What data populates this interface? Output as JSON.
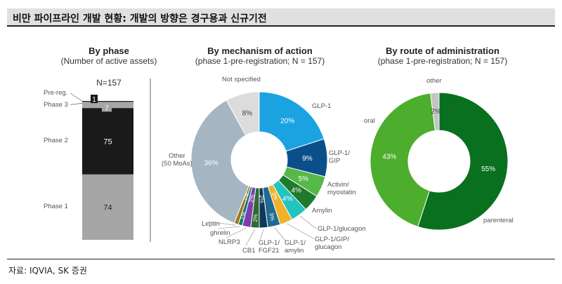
{
  "header": {
    "title": "비만 파이프라인 개발 현황: 개발의 방향은 경구용과 신규기전"
  },
  "footer": {
    "source": "자료: IQVIA, SK 증권"
  },
  "chart_data": [
    {
      "type": "bar",
      "title": "By phase",
      "subtitle": "(Number of active assets)",
      "total_label": "N=157",
      "categories": [
        "Phase 1",
        "Phase 2",
        "Phase 3",
        "Pre-reg."
      ],
      "values": [
        74,
        75,
        7,
        1
      ],
      "colors": [
        "#a6a6a6",
        "#1a1a1a",
        "#a6a6a6",
        "#1a1a1a"
      ]
    },
    {
      "type": "pie",
      "title": "By mechanism of action",
      "subtitle": "(phase 1-pre-registration; N = 157)",
      "slices": [
        {
          "label": "GLP-1",
          "value": 20,
          "color": "#1aa3e0"
        },
        {
          "label": "GLP-1/\nGIP",
          "value": 9,
          "color": "#0b4f8a"
        },
        {
          "label": "Activin/\nmyostatin",
          "value": 5,
          "color": "#55b847"
        },
        {
          "label": "Amylin",
          "value": 4,
          "color": "#1e7a2e"
        },
        {
          "label": "GLP-1/glucagon",
          "value": 4,
          "color": "#22c4c0"
        },
        {
          "label": "GLP-1/GIP/\nglucagon",
          "value": 3,
          "color": "#f0b22a"
        },
        {
          "label": "GLP-1/\namylin",
          "value": 3,
          "color": "#1f6a93"
        },
        {
          "label": "GLP-1/\nFGF21",
          "value": 2,
          "color": "#0d3a5a"
        },
        {
          "label": "CB1",
          "value": 2,
          "color": "#2e6b2e"
        },
        {
          "label": "NLRP3",
          "value": 2,
          "color": "#7b3fb0"
        },
        {
          "label": "ghrelin",
          "value": 1,
          "color": "#127a6e"
        },
        {
          "label": "Leptin",
          "value": 1,
          "color": "#a07818"
        },
        {
          "label": "Other\n(50 MoAs)",
          "value": 36,
          "color": "#a5b5c2"
        },
        {
          "label": "Not specified",
          "value": 8,
          "color": "#dcdcdc"
        }
      ]
    },
    {
      "type": "pie",
      "title": "By route of administration",
      "subtitle": "(phase 1-pre-registration; N = 157)",
      "slices": [
        {
          "label": "parenteral",
          "value": 55,
          "color": "#08701f"
        },
        {
          "label": "oral",
          "value": 43,
          "color": "#4cae2c"
        },
        {
          "label": "other",
          "value": 2,
          "color": "#c4c4c4"
        }
      ]
    }
  ]
}
